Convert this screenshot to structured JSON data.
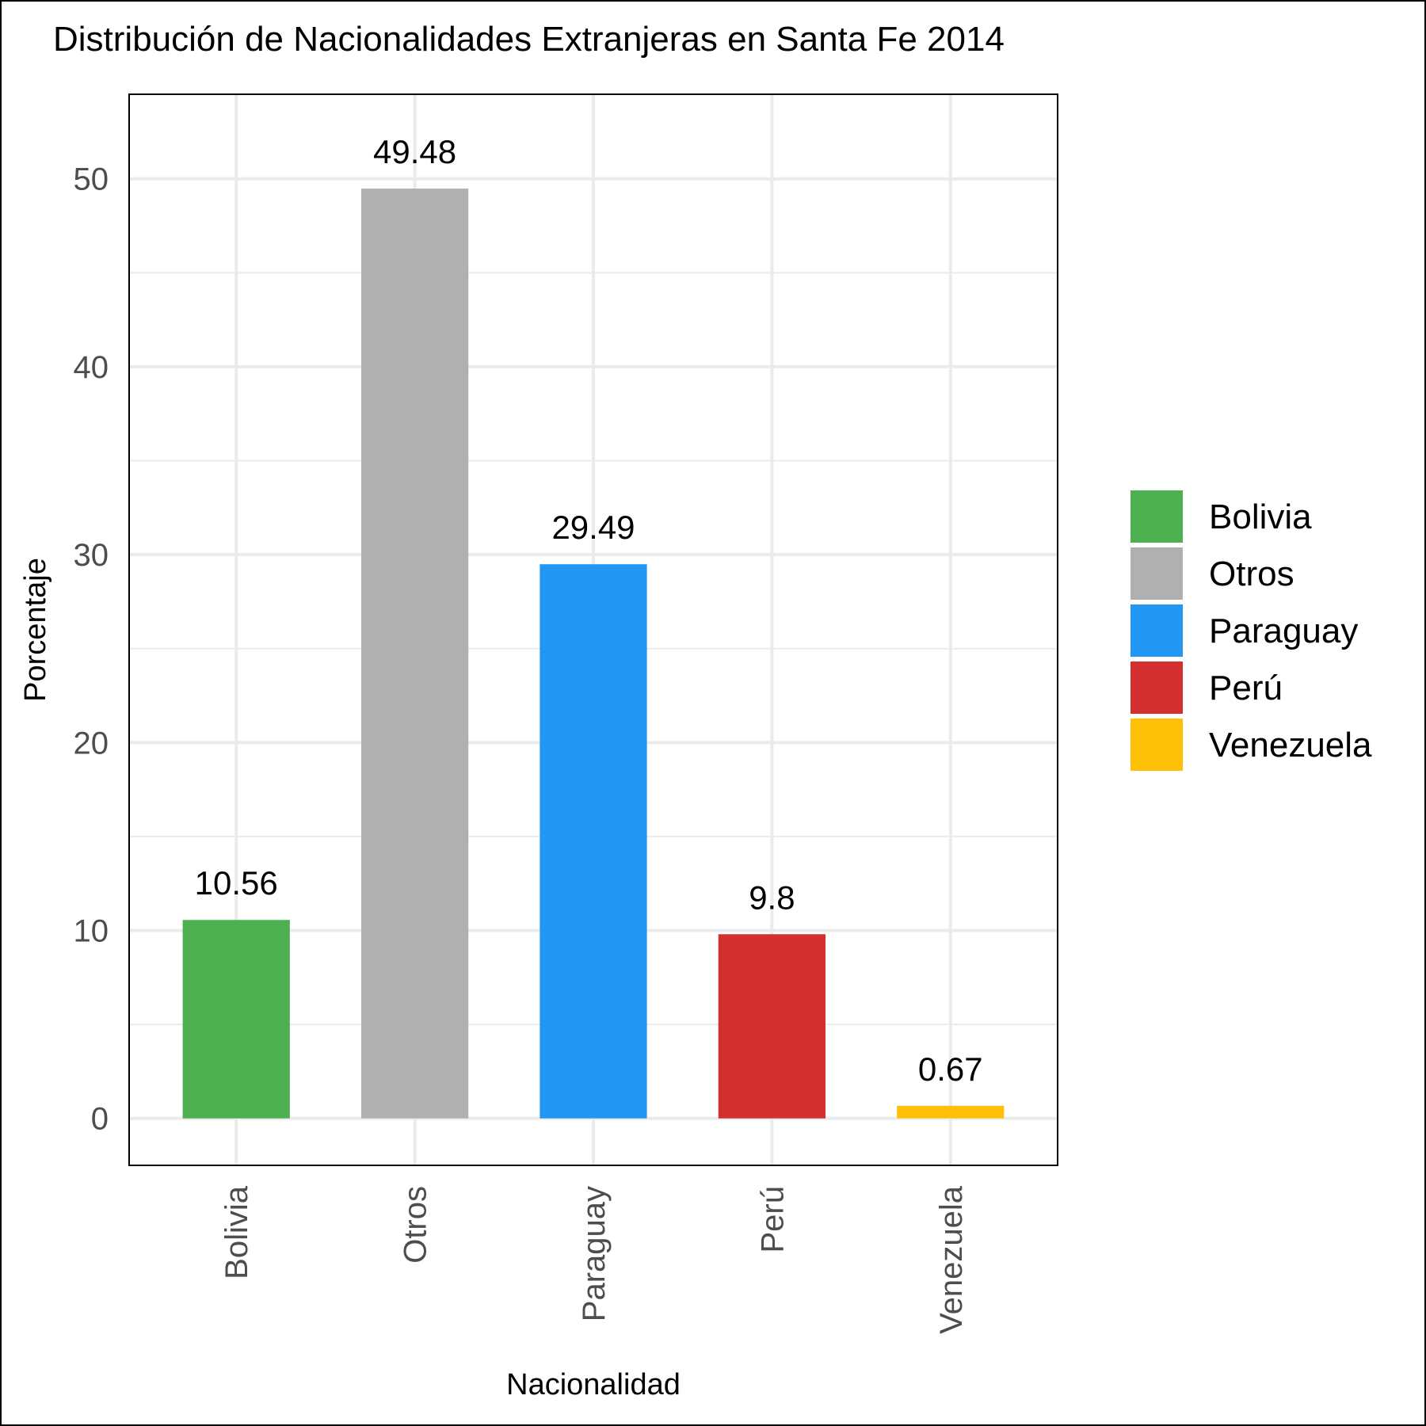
{
  "chart_data": {
    "type": "bar",
    "title": "Distribución de Nacionalidades Extranjeras en Santa Fe 2014",
    "xlabel": "Nacionalidad",
    "ylabel": "Porcentaje",
    "categories": [
      "Bolivia",
      "Otros",
      "Paraguay",
      "Perú",
      "Venezuela"
    ],
    "values": [
      10.56,
      49.48,
      29.49,
      9.8,
      0.67
    ],
    "data_labels": [
      "10.56",
      "49.48",
      "29.49",
      "9.8",
      "0.67"
    ],
    "colors": [
      "#4caf50",
      "#b0b0b0",
      "#2196f3",
      "#d32f2f",
      "#ffc107"
    ],
    "ylim": [
      -2.5,
      54.5
    ],
    "y_ticks": [
      0,
      10,
      20,
      30,
      40,
      50
    ],
    "y_tick_labels": [
      "0",
      "10",
      "20",
      "30",
      "40",
      "50"
    ],
    "y_minor_ticks": [
      5,
      15,
      25,
      35,
      45
    ],
    "grid": true,
    "x_tick_rotation": -90,
    "legend": {
      "placement": "right",
      "entries": [
        "Bolivia",
        "Otros",
        "Paraguay",
        "Perú",
        "Venezuela"
      ]
    }
  }
}
